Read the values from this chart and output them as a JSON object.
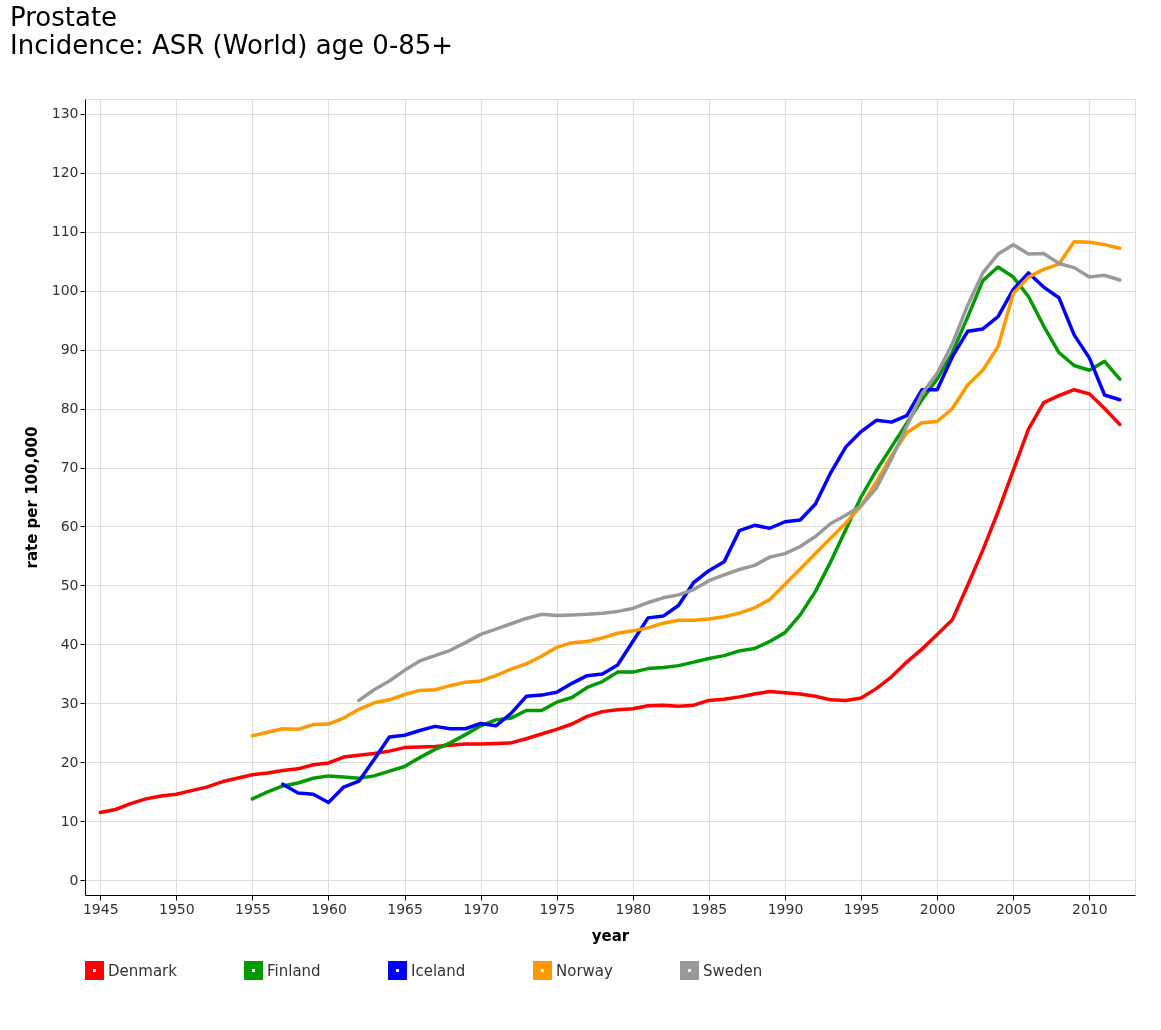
{
  "chart_data": {
    "type": "line",
    "title": "Prostate",
    "subtitle": "Incidence: ASR (World) age 0-85+",
    "xlabel": "year",
    "ylabel": "rate per 100,000",
    "x": [
      1945,
      1946,
      1947,
      1948,
      1949,
      1950,
      1951,
      1952,
      1953,
      1954,
      1955,
      1956,
      1957,
      1958,
      1959,
      1960,
      1961,
      1962,
      1963,
      1964,
      1965,
      1966,
      1967,
      1968,
      1969,
      1970,
      1971,
      1972,
      1973,
      1974,
      1975,
      1976,
      1977,
      1978,
      1979,
      1980,
      1981,
      1982,
      1983,
      1984,
      1985,
      1986,
      1987,
      1988,
      1989,
      1990,
      1991,
      1992,
      1993,
      1994,
      1995,
      1996,
      1997,
      1998,
      1999,
      2000,
      2001,
      2002,
      2003,
      2004,
      2005,
      2006,
      2007,
      2008,
      2009,
      2010,
      2011,
      2012
    ],
    "series": [
      {
        "name": "Denmark",
        "color": "#ff0000",
        "values": [
          11.5,
          12,
          13,
          13.8,
          14.3,
          14.6,
          15.2,
          15.8,
          16.7,
          17.3,
          17.9,
          18.2,
          18.6,
          18.9,
          19.6,
          19.9,
          20.9,
          21.2,
          21.5,
          21.9,
          22.5,
          22.6,
          22.7,
          22.9,
          23.1,
          23.1,
          23.2,
          23.3,
          24,
          24.8,
          25.6,
          26.5,
          27.8,
          28.6,
          28.9,
          29.1,
          29.6,
          29.7,
          29.5,
          29.7,
          30.5,
          30.7,
          31.1,
          31.6,
          32,
          31.8,
          31.6,
          31.2,
          30.6,
          30.5,
          30.9,
          32.5,
          34.5,
          37,
          39.2,
          41.7,
          44.2,
          50,
          56,
          62.5,
          69.5,
          76.5,
          81,
          82.2,
          83.2,
          82.5,
          80,
          77.3
        ]
      },
      {
        "name": "Finland",
        "color": "#009900",
        "values": [
          null,
          null,
          null,
          null,
          null,
          null,
          null,
          null,
          null,
          null,
          13.8,
          15,
          16,
          16.5,
          17.3,
          17.7,
          17.5,
          17.3,
          17.7,
          18.5,
          19.3,
          20.8,
          22.2,
          23.3,
          24.7,
          26.2,
          27.2,
          27.5,
          28.8,
          28.8,
          30.2,
          31,
          32.7,
          33.7,
          35.3,
          35.3,
          35.9,
          36.1,
          36.4,
          37,
          37.6,
          38.1,
          38.9,
          39.3,
          40.5,
          42,
          45,
          49,
          54,
          59.5,
          65,
          69.5,
          73.5,
          77.5,
          81.5,
          85,
          89.5,
          95.5,
          101.7,
          104,
          102.3,
          99,
          94,
          89.5,
          87.3,
          86.5,
          88,
          85
        ]
      },
      {
        "name": "Iceland",
        "color": "#0000ff",
        "values": [
          null,
          null,
          null,
          null,
          null,
          null,
          null,
          null,
          null,
          null,
          null,
          null,
          16.3,
          14.8,
          14.6,
          13.2,
          15.8,
          16.8,
          20.5,
          24.3,
          24.6,
          25.4,
          26.1,
          25.7,
          25.7,
          26.6,
          26.2,
          28.3,
          31.2,
          31.4,
          31.9,
          33.4,
          34.7,
          35,
          36.5,
          40.5,
          44.5,
          44.8,
          46.6,
          50.5,
          52.5,
          54,
          59.3,
          60.2,
          59.7,
          60.8,
          61.1,
          63.8,
          69.1,
          73.5,
          76.1,
          78,
          77.7,
          78.8,
          83.2,
          83.2,
          88.8,
          93.1,
          93.5,
          95.6,
          100.2,
          103,
          100.6,
          98.8,
          92.5,
          88.6,
          82.3,
          81.5
        ]
      },
      {
        "name": "Norway",
        "color": "#ff9900",
        "values": [
          null,
          null,
          null,
          null,
          null,
          null,
          null,
          null,
          null,
          null,
          24.5,
          25.1,
          25.7,
          25.6,
          26.4,
          26.5,
          27.5,
          29,
          30.1,
          30.6,
          31.5,
          32.2,
          32.3,
          33,
          33.6,
          33.8,
          34.7,
          35.8,
          36.7,
          38,
          39.5,
          40.3,
          40.5,
          41.1,
          41.9,
          42.3,
          42.8,
          43.6,
          44.1,
          44.1,
          44.3,
          44.7,
          45.3,
          46.2,
          47.6,
          50.2,
          52.8,
          55.4,
          58,
          60.6,
          63.5,
          67.5,
          72,
          75.9,
          77.6,
          77.8,
          80,
          84,
          86.5,
          90.5,
          99.5,
          102.3,
          103.6,
          104.5,
          108.3,
          108.2,
          107.8,
          107.2
        ]
      },
      {
        "name": "Sweden",
        "color": "#999999",
        "values": [
          null,
          null,
          null,
          null,
          null,
          null,
          null,
          null,
          null,
          null,
          null,
          null,
          null,
          null,
          null,
          null,
          null,
          30.5,
          32.3,
          33.8,
          35.6,
          37.2,
          38.1,
          39,
          40.3,
          41.7,
          42.6,
          43.5,
          44.4,
          45.1,
          44.9,
          45,
          45.1,
          45.3,
          45.6,
          46.1,
          47.1,
          47.9,
          48.4,
          49.3,
          50.8,
          51.8,
          52.7,
          53.4,
          54.8,
          55.4,
          56.6,
          58.3,
          60.5,
          61.9,
          63.5,
          66.5,
          71.5,
          77,
          82.5,
          86,
          91,
          97.5,
          103,
          106.2,
          107.8,
          106.2,
          106.3,
          104.6,
          103.9,
          102.3,
          102.6,
          101.8
        ]
      }
    ],
    "xlim": [
      1944,
      2013
    ],
    "xticks": [
      1945,
      1950,
      1955,
      1960,
      1965,
      1970,
      1975,
      1980,
      1985,
      1990,
      1995,
      2000,
      2005,
      2010
    ],
    "ylim": [
      -2.5,
      132.5
    ],
    "yticks": [
      0,
      10,
      20,
      30,
      40,
      50,
      60,
      70,
      80,
      90,
      100,
      110,
      120,
      130
    ],
    "grid": true,
    "legend": "bottom",
    "marker": "none",
    "line_style": "solid"
  }
}
